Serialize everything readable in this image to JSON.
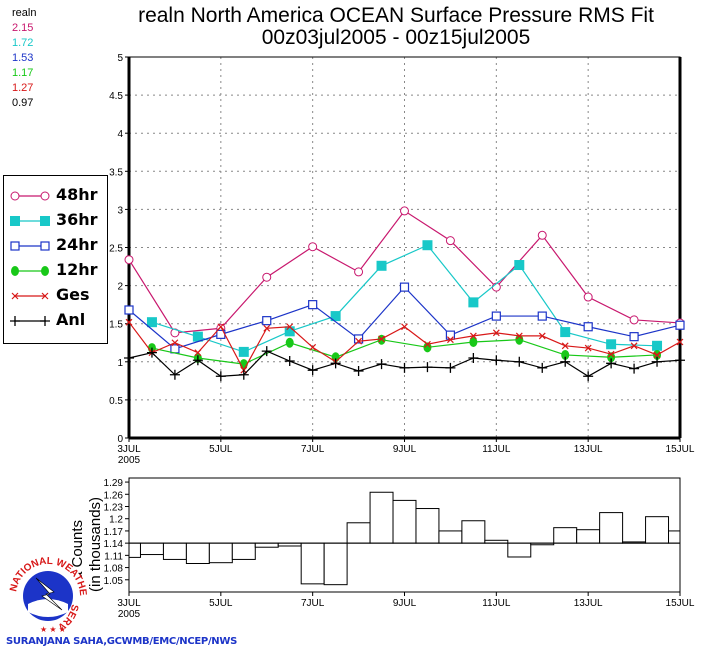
{
  "title": {
    "line1": "realn North America OCEAN Surface Pressure RMS Fit",
    "line2": "00z03jul2005 - 00z15jul2005"
  },
  "stats": {
    "label": "realn",
    "values": [
      {
        "value": "2.15",
        "color": "#c8186e"
      },
      {
        "value": "1.72",
        "color": "#18c8c8"
      },
      {
        "value": "1.53",
        "color": "#1c34c8"
      },
      {
        "value": "1.17",
        "color": "#18c818"
      },
      {
        "value": "1.27",
        "color": "#d81818"
      },
      {
        "value": "0.97",
        "color": "#000000"
      }
    ]
  },
  "legend": [
    {
      "label": "48hr",
      "color": "#c8186e",
      "marker": "open-circle"
    },
    {
      "label": "36hr",
      "color": "#18c8c8",
      "marker": "filled-square"
    },
    {
      "label": "24hr",
      "color": "#1c34c8",
      "marker": "open-square"
    },
    {
      "label": "12hr",
      "color": "#18c818",
      "marker": "filled-circle"
    },
    {
      "label": "Ges",
      "color": "#d81818",
      "marker": "x"
    },
    {
      "label": "Anl",
      "color": "#000000",
      "marker": "plus"
    }
  ],
  "chart_data": [
    {
      "type": "line",
      "title": "realn North America OCEAN Surface Pressure RMS Fit",
      "subtitle": "00z03jul2005 - 00z15jul2005",
      "xlabel": "",
      "ylabel": "",
      "x_unit": "12-hour steps from 00z03jul2005",
      "x_ticks": [
        {
          "step": 0,
          "label": "3JUL",
          "label2": "2005"
        },
        {
          "step": 4,
          "label": "5JUL"
        },
        {
          "step": 8,
          "label": "7JUL"
        },
        {
          "step": 12,
          "label": "9JUL"
        },
        {
          "step": 16,
          "label": "11JUL"
        },
        {
          "step": 20,
          "label": "13JUL"
        },
        {
          "step": 24,
          "label": "15JUL"
        }
      ],
      "xlim": [
        0,
        24
      ],
      "ylim": [
        0,
        5
      ],
      "y_ticks": [
        "0",
        "0.5",
        "1",
        "1.5",
        "2",
        "2.5",
        "3",
        "3.5",
        "4",
        "4.5",
        "5"
      ],
      "grid": true,
      "legend_position": "left",
      "series": [
        {
          "name": "48hr",
          "x": [
            0,
            2,
            4,
            6,
            8,
            10,
            12,
            14,
            16,
            18,
            20,
            22,
            24
          ],
          "values": [
            2.34,
            1.38,
            1.44,
            2.11,
            2.51,
            2.18,
            2.98,
            2.59,
            1.98,
            2.66,
            1.85,
            1.55,
            1.51
          ]
        },
        {
          "name": "36hr",
          "x": [
            1,
            3,
            5,
            7,
            9,
            11,
            13,
            15,
            17,
            19,
            21,
            23
          ],
          "values": [
            1.52,
            1.33,
            1.13,
            1.4,
            1.6,
            2.26,
            2.53,
            1.78,
            2.27,
            1.39,
            1.23,
            1.21
          ]
        },
        {
          "name": "24hr",
          "x": [
            0,
            2,
            4,
            6,
            8,
            10,
            12,
            14,
            16,
            18,
            20,
            22,
            24
          ],
          "values": [
            1.68,
            1.17,
            1.36,
            1.54,
            1.75,
            1.3,
            1.98,
            1.35,
            1.6,
            1.6,
            1.46,
            1.33,
            1.48
          ]
        },
        {
          "name": "12hr",
          "x": [
            1,
            3,
            5,
            7,
            9,
            11,
            13,
            15,
            17,
            19,
            21,
            23
          ],
          "values": [
            1.18,
            1.05,
            0.97,
            1.25,
            1.06,
            1.29,
            1.19,
            1.26,
            1.29,
            1.09,
            1.06,
            1.09
          ]
        },
        {
          "name": "Ges",
          "x": [
            0,
            1,
            2,
            3,
            4,
            5,
            6,
            7,
            8,
            9,
            10,
            11,
            12,
            13,
            14,
            15,
            16,
            17,
            18,
            19,
            20,
            21,
            22,
            23,
            24
          ],
          "values": [
            1.52,
            1.12,
            1.25,
            1.12,
            1.46,
            0.89,
            1.44,
            1.46,
            1.19,
            1.0,
            1.27,
            1.3,
            1.46,
            1.23,
            1.29,
            1.34,
            1.38,
            1.34,
            1.34,
            1.21,
            1.18,
            1.1,
            1.21,
            1.09,
            1.26
          ]
        },
        {
          "name": "Anl",
          "x": [
            0,
            1,
            2,
            3,
            4,
            5,
            6,
            7,
            8,
            9,
            10,
            11,
            12,
            13,
            14,
            15,
            16,
            17,
            18,
            19,
            20,
            21,
            22,
            23,
            24
          ],
          "values": [
            1.05,
            1.12,
            0.83,
            1.02,
            0.81,
            0.83,
            1.14,
            1.01,
            0.89,
            0.98,
            0.88,
            0.97,
            0.92,
            0.93,
            0.92,
            1.05,
            1.02,
            1.0,
            0.92,
            1.0,
            0.81,
            0.98,
            0.91,
            1.0,
            1.02
          ]
        }
      ]
    },
    {
      "type": "bar",
      "title": "",
      "ylabel": "a Counts",
      "ylabel2": "(in thousands)",
      "x_ticks": [
        {
          "step": 0,
          "label": "3JUL",
          "label2": "2005"
        },
        {
          "step": 4,
          "label": "5JUL"
        },
        {
          "step": 8,
          "label": "7JUL"
        },
        {
          "step": 12,
          "label": "9JUL"
        },
        {
          "step": 16,
          "label": "11JUL"
        },
        {
          "step": 20,
          "label": "13JUL"
        },
        {
          "step": 24,
          "label": "15JUL"
        }
      ],
      "y_ticks": [
        "1.05",
        "1.08",
        "1.11",
        "1.14",
        "1.17",
        "1.2",
        "1.23",
        "1.26",
        "1.29"
      ],
      "y_tick_values": [
        1.05,
        1.08,
        1.11,
        1.14,
        1.17,
        1.2,
        1.23,
        1.26,
        1.29
      ],
      "ylim": [
        1.02,
        1.3
      ],
      "baseline": 1.14,
      "x": [
        0,
        1,
        2,
        3,
        4,
        5,
        6,
        7,
        8,
        9,
        10,
        11,
        12,
        13,
        14,
        15,
        16,
        17,
        18,
        19,
        20,
        21,
        22,
        23,
        24
      ],
      "values": [
        1.105,
        1.112,
        1.1,
        1.09,
        1.092,
        1.1,
        1.13,
        1.133,
        1.04,
        1.038,
        1.19,
        1.265,
        1.245,
        1.225,
        1.17,
        1.195,
        1.147,
        1.106,
        1.136,
        1.178,
        1.173,
        1.215,
        1.143,
        1.205,
        1.17
      ]
    }
  ],
  "logo": {
    "text_top": "NATIONAL WEATHER",
    "text_bottom": "SERVICE"
  },
  "footer": "SURANJANA SAHA,GCWMB/EMC/NCEP/NWS"
}
